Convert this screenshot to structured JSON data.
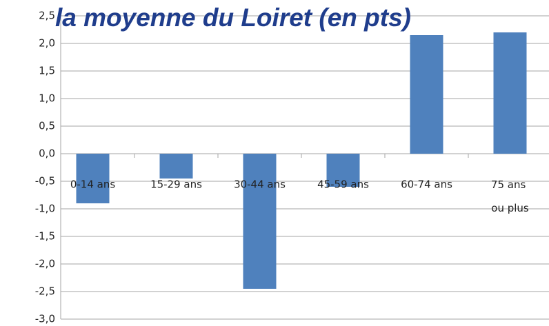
{
  "chart_data": {
    "type": "bar",
    "title": "la moyenne du Loiret (en pts)",
    "categories": [
      "0-14 ans",
      "15-29 ans",
      "30-44 ans",
      "45-59 ans",
      "60-74 ans",
      "75 ans ou plus"
    ],
    "values": [
      -0.9,
      -0.45,
      -2.45,
      -0.6,
      2.15,
      2.2
    ],
    "color": "#4f81bd",
    "ylim": [
      -3.0,
      2.5
    ],
    "yticks": [
      {
        "value": 2.5,
        "label": "2,5"
      },
      {
        "value": 2.0,
        "label": "2,0"
      },
      {
        "value": 1.5,
        "label": "1,5"
      },
      {
        "value": 1.0,
        "label": "1,0"
      },
      {
        "value": 0.5,
        "label": "0,5"
      },
      {
        "value": 0.0,
        "label": "0,0"
      },
      {
        "value": -0.5,
        "label": "-0,5"
      },
      {
        "value": -1.0,
        "label": "-1,0"
      },
      {
        "value": -1.5,
        "label": "-1,5"
      },
      {
        "value": -2.0,
        "label": "-2,0"
      },
      {
        "value": -2.5,
        "label": "-2,5"
      },
      {
        "value": -3.0,
        "label": "-3,0"
      }
    ],
    "grid": true
  }
}
